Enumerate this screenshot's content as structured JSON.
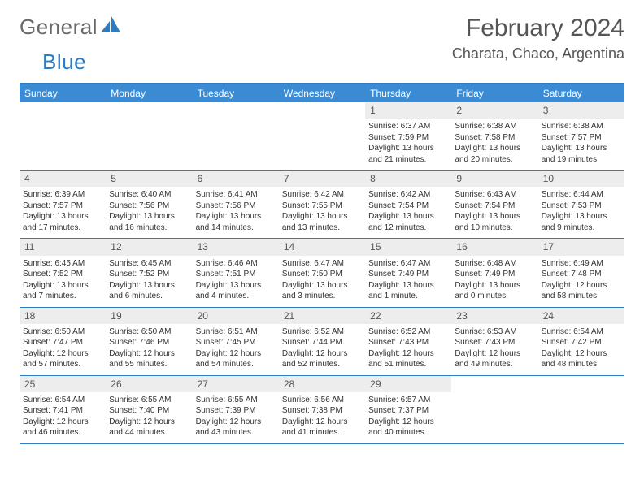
{
  "brand": {
    "word1": "General",
    "word2": "Blue"
  },
  "title": "February 2024",
  "location": "Charata, Chaco, Argentina",
  "theme": {
    "header_bg": "#3b8bd4",
    "accent_border": "#2f7bbf",
    "daynum_bg": "#ededed",
    "page_bg": "#ffffff",
    "text_color": "#333333",
    "muted_text": "#555555",
    "logo_gray": "#6a6a6a"
  },
  "weekdays": [
    "Sunday",
    "Monday",
    "Tuesday",
    "Wednesday",
    "Thursday",
    "Friday",
    "Saturday"
  ],
  "weeks": [
    [
      null,
      null,
      null,
      null,
      {
        "n": "1",
        "sr": "Sunrise: 6:37 AM",
        "ss": "Sunset: 7:59 PM",
        "d1": "Daylight: 13 hours",
        "d2": "and 21 minutes."
      },
      {
        "n": "2",
        "sr": "Sunrise: 6:38 AM",
        "ss": "Sunset: 7:58 PM",
        "d1": "Daylight: 13 hours",
        "d2": "and 20 minutes."
      },
      {
        "n": "3",
        "sr": "Sunrise: 6:38 AM",
        "ss": "Sunset: 7:57 PM",
        "d1": "Daylight: 13 hours",
        "d2": "and 19 minutes."
      }
    ],
    [
      {
        "n": "4",
        "sr": "Sunrise: 6:39 AM",
        "ss": "Sunset: 7:57 PM",
        "d1": "Daylight: 13 hours",
        "d2": "and 17 minutes."
      },
      {
        "n": "5",
        "sr": "Sunrise: 6:40 AM",
        "ss": "Sunset: 7:56 PM",
        "d1": "Daylight: 13 hours",
        "d2": "and 16 minutes."
      },
      {
        "n": "6",
        "sr": "Sunrise: 6:41 AM",
        "ss": "Sunset: 7:56 PM",
        "d1": "Daylight: 13 hours",
        "d2": "and 14 minutes."
      },
      {
        "n": "7",
        "sr": "Sunrise: 6:42 AM",
        "ss": "Sunset: 7:55 PM",
        "d1": "Daylight: 13 hours",
        "d2": "and 13 minutes."
      },
      {
        "n": "8",
        "sr": "Sunrise: 6:42 AM",
        "ss": "Sunset: 7:54 PM",
        "d1": "Daylight: 13 hours",
        "d2": "and 12 minutes."
      },
      {
        "n": "9",
        "sr": "Sunrise: 6:43 AM",
        "ss": "Sunset: 7:54 PM",
        "d1": "Daylight: 13 hours",
        "d2": "and 10 minutes."
      },
      {
        "n": "10",
        "sr": "Sunrise: 6:44 AM",
        "ss": "Sunset: 7:53 PM",
        "d1": "Daylight: 13 hours",
        "d2": "and 9 minutes."
      }
    ],
    [
      {
        "n": "11",
        "sr": "Sunrise: 6:45 AM",
        "ss": "Sunset: 7:52 PM",
        "d1": "Daylight: 13 hours",
        "d2": "and 7 minutes."
      },
      {
        "n": "12",
        "sr": "Sunrise: 6:45 AM",
        "ss": "Sunset: 7:52 PM",
        "d1": "Daylight: 13 hours",
        "d2": "and 6 minutes."
      },
      {
        "n": "13",
        "sr": "Sunrise: 6:46 AM",
        "ss": "Sunset: 7:51 PM",
        "d1": "Daylight: 13 hours",
        "d2": "and 4 minutes."
      },
      {
        "n": "14",
        "sr": "Sunrise: 6:47 AM",
        "ss": "Sunset: 7:50 PM",
        "d1": "Daylight: 13 hours",
        "d2": "and 3 minutes."
      },
      {
        "n": "15",
        "sr": "Sunrise: 6:47 AM",
        "ss": "Sunset: 7:49 PM",
        "d1": "Daylight: 13 hours",
        "d2": "and 1 minute."
      },
      {
        "n": "16",
        "sr": "Sunrise: 6:48 AM",
        "ss": "Sunset: 7:49 PM",
        "d1": "Daylight: 13 hours",
        "d2": "and 0 minutes."
      },
      {
        "n": "17",
        "sr": "Sunrise: 6:49 AM",
        "ss": "Sunset: 7:48 PM",
        "d1": "Daylight: 12 hours",
        "d2": "and 58 minutes."
      }
    ],
    [
      {
        "n": "18",
        "sr": "Sunrise: 6:50 AM",
        "ss": "Sunset: 7:47 PM",
        "d1": "Daylight: 12 hours",
        "d2": "and 57 minutes."
      },
      {
        "n": "19",
        "sr": "Sunrise: 6:50 AM",
        "ss": "Sunset: 7:46 PM",
        "d1": "Daylight: 12 hours",
        "d2": "and 55 minutes."
      },
      {
        "n": "20",
        "sr": "Sunrise: 6:51 AM",
        "ss": "Sunset: 7:45 PM",
        "d1": "Daylight: 12 hours",
        "d2": "and 54 minutes."
      },
      {
        "n": "21",
        "sr": "Sunrise: 6:52 AM",
        "ss": "Sunset: 7:44 PM",
        "d1": "Daylight: 12 hours",
        "d2": "and 52 minutes."
      },
      {
        "n": "22",
        "sr": "Sunrise: 6:52 AM",
        "ss": "Sunset: 7:43 PM",
        "d1": "Daylight: 12 hours",
        "d2": "and 51 minutes."
      },
      {
        "n": "23",
        "sr": "Sunrise: 6:53 AM",
        "ss": "Sunset: 7:43 PM",
        "d1": "Daylight: 12 hours",
        "d2": "and 49 minutes."
      },
      {
        "n": "24",
        "sr": "Sunrise: 6:54 AM",
        "ss": "Sunset: 7:42 PM",
        "d1": "Daylight: 12 hours",
        "d2": "and 48 minutes."
      }
    ],
    [
      {
        "n": "25",
        "sr": "Sunrise: 6:54 AM",
        "ss": "Sunset: 7:41 PM",
        "d1": "Daylight: 12 hours",
        "d2": "and 46 minutes."
      },
      {
        "n": "26",
        "sr": "Sunrise: 6:55 AM",
        "ss": "Sunset: 7:40 PM",
        "d1": "Daylight: 12 hours",
        "d2": "and 44 minutes."
      },
      {
        "n": "27",
        "sr": "Sunrise: 6:55 AM",
        "ss": "Sunset: 7:39 PM",
        "d1": "Daylight: 12 hours",
        "d2": "and 43 minutes."
      },
      {
        "n": "28",
        "sr": "Sunrise: 6:56 AM",
        "ss": "Sunset: 7:38 PM",
        "d1": "Daylight: 12 hours",
        "d2": "and 41 minutes."
      },
      {
        "n": "29",
        "sr": "Sunrise: 6:57 AM",
        "ss": "Sunset: 7:37 PM",
        "d1": "Daylight: 12 hours",
        "d2": "and 40 minutes."
      },
      null,
      null
    ]
  ]
}
